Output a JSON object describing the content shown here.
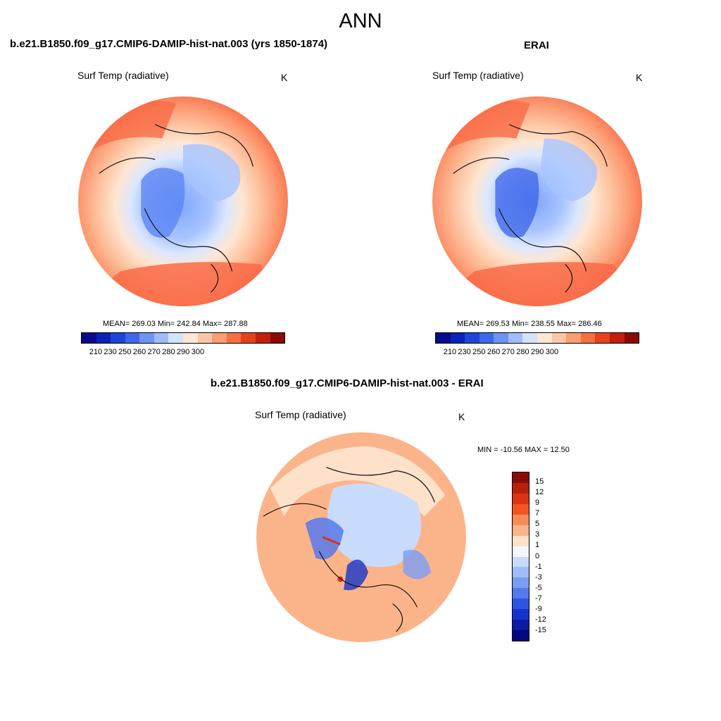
{
  "title": "ANN",
  "colors": {
    "warm": [
      "#ffe6d2",
      "#fdc3a0",
      "#fc9a72",
      "#f96a46",
      "#ea3a1f",
      "#c51d0c",
      "#8e0d06"
    ],
    "cool": [
      "#dbe7ff",
      "#a8c4ff",
      "#7ea6fb",
      "#5b86f4",
      "#3b63ea",
      "#1d3ed6",
      "#0a1aa6",
      "#00007f"
    ],
    "coast": "#111111"
  },
  "panels": [
    {
      "title": "b.e21.B1850.f09_g17.CMIP6-DAMIP-hist-nat.003 (yrs 1850-1874)",
      "variable": "Surf Temp (radiative)",
      "unit": "K",
      "stats": "MEAN= 269.03  Min= 242.84  Max= 287.88",
      "colorbar_ticks": [
        "210",
        "230",
        "250",
        "260",
        "270",
        "280",
        "290",
        "300"
      ]
    },
    {
      "title": "ERAI",
      "variable": "Surf Temp (radiative)",
      "unit": "K",
      "stats": "MEAN= 269.53  Min= 238.55  Max= 286.46",
      "colorbar_ticks": [
        "210",
        "230",
        "250",
        "260",
        "270",
        "280",
        "290",
        "300"
      ]
    },
    {
      "title": "b.e21.B1850.f09_g17.CMIP6-DAMIP-hist-nat.003 - ERAI",
      "variable": "Surf Temp (radiative)",
      "unit": "K",
      "stats": "MIN = -10.56 MAX =  12.50",
      "colorbar_ticks": [
        "15",
        "12",
        "9",
        "7",
        "5",
        "3",
        "1",
        "0",
        "-1",
        "-3",
        "-5",
        "-7",
        "-9",
        "-12",
        "-15"
      ]
    }
  ],
  "colorbar_abs": [
    "#0a0a8c",
    "#0c22b4",
    "#1f44d8",
    "#3e68ec",
    "#6d93f5",
    "#9fbbf9",
    "#d2e3fc",
    "#fde6d3",
    "#fcc6a6",
    "#fa9d72",
    "#f4703f",
    "#e5421c",
    "#c0200c",
    "#8b0a04"
  ],
  "colorbar_diff": [
    "#8b0a04",
    "#b8200a",
    "#dc3410",
    "#f2561e",
    "#f98b59",
    "#fbb48a",
    "#fde1c9",
    "#f3f6ff",
    "#c9dbfd",
    "#9ebdf9",
    "#7a9df4",
    "#5579ec",
    "#2f54e3",
    "#1634cc",
    "#0a1ba6",
    "#020780"
  ]
}
